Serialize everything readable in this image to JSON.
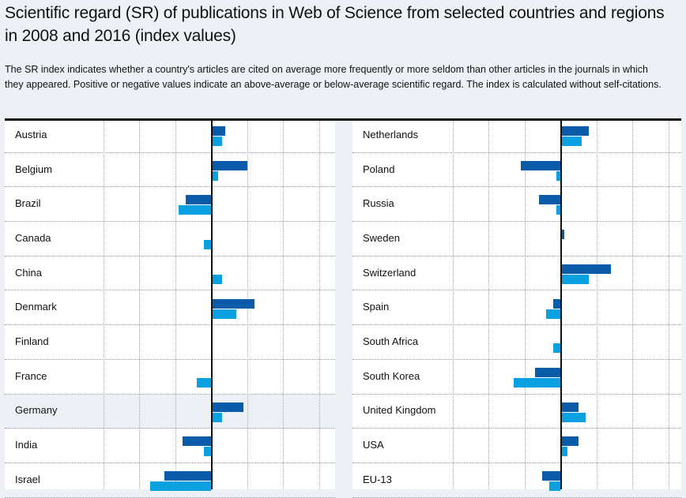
{
  "title": "Scientific regard (SR) of publications in Web of Science from selected countries and regions in 2008 and 2016 (index values)",
  "description": "The SR index indicates whether a country's articles are cited on average more frequently or more seldom than other articles in the journals in which they appeared. Positive or negative values indicate an above-average or below-average scientific regard. The index is calculated without self-citations.",
  "chart_data": {
    "type": "bar",
    "orientation": "horizontal",
    "grid": true,
    "xlim": [
      -30,
      30
    ],
    "colors": {
      "2008": "#0a5ca8",
      "2016": "#0ba0e0"
    },
    "highlighted": "Germany",
    "panels": [
      {
        "categories": [
          "Austria",
          "Belgium",
          "Brazil",
          "Canada",
          "China",
          "Denmark",
          "Finland",
          "France",
          "Germany",
          "India",
          "Israel"
        ],
        "series": [
          {
            "key": "2008",
            "values": [
              4,
              10,
              -7,
              0,
              0,
              12,
              0,
              0,
              9,
              -8,
              -13
            ]
          },
          {
            "key": "2016",
            "values": [
              3,
              2,
              -9,
              -2,
              3,
              7,
              0,
              -4,
              3,
              -2,
              -17
            ]
          }
        ]
      },
      {
        "categories": [
          "Netherlands",
          "Poland",
          "Russia",
          "Sweden",
          "Switzerland",
          "Spain",
          "South Africa",
          "South Korea",
          "United Kingdom",
          "USA",
          "EU-13"
        ],
        "series": [
          {
            "key": "2008",
            "values": [
              8,
              -11,
              -6,
              1,
              14,
              -2,
              0,
              -7,
              5,
              5,
              -5
            ]
          },
          {
            "key": "2016",
            "values": [
              6,
              -1,
              -1,
              0,
              8,
              -4,
              -2,
              -13,
              7,
              2,
              -3
            ]
          }
        ]
      }
    ]
  }
}
